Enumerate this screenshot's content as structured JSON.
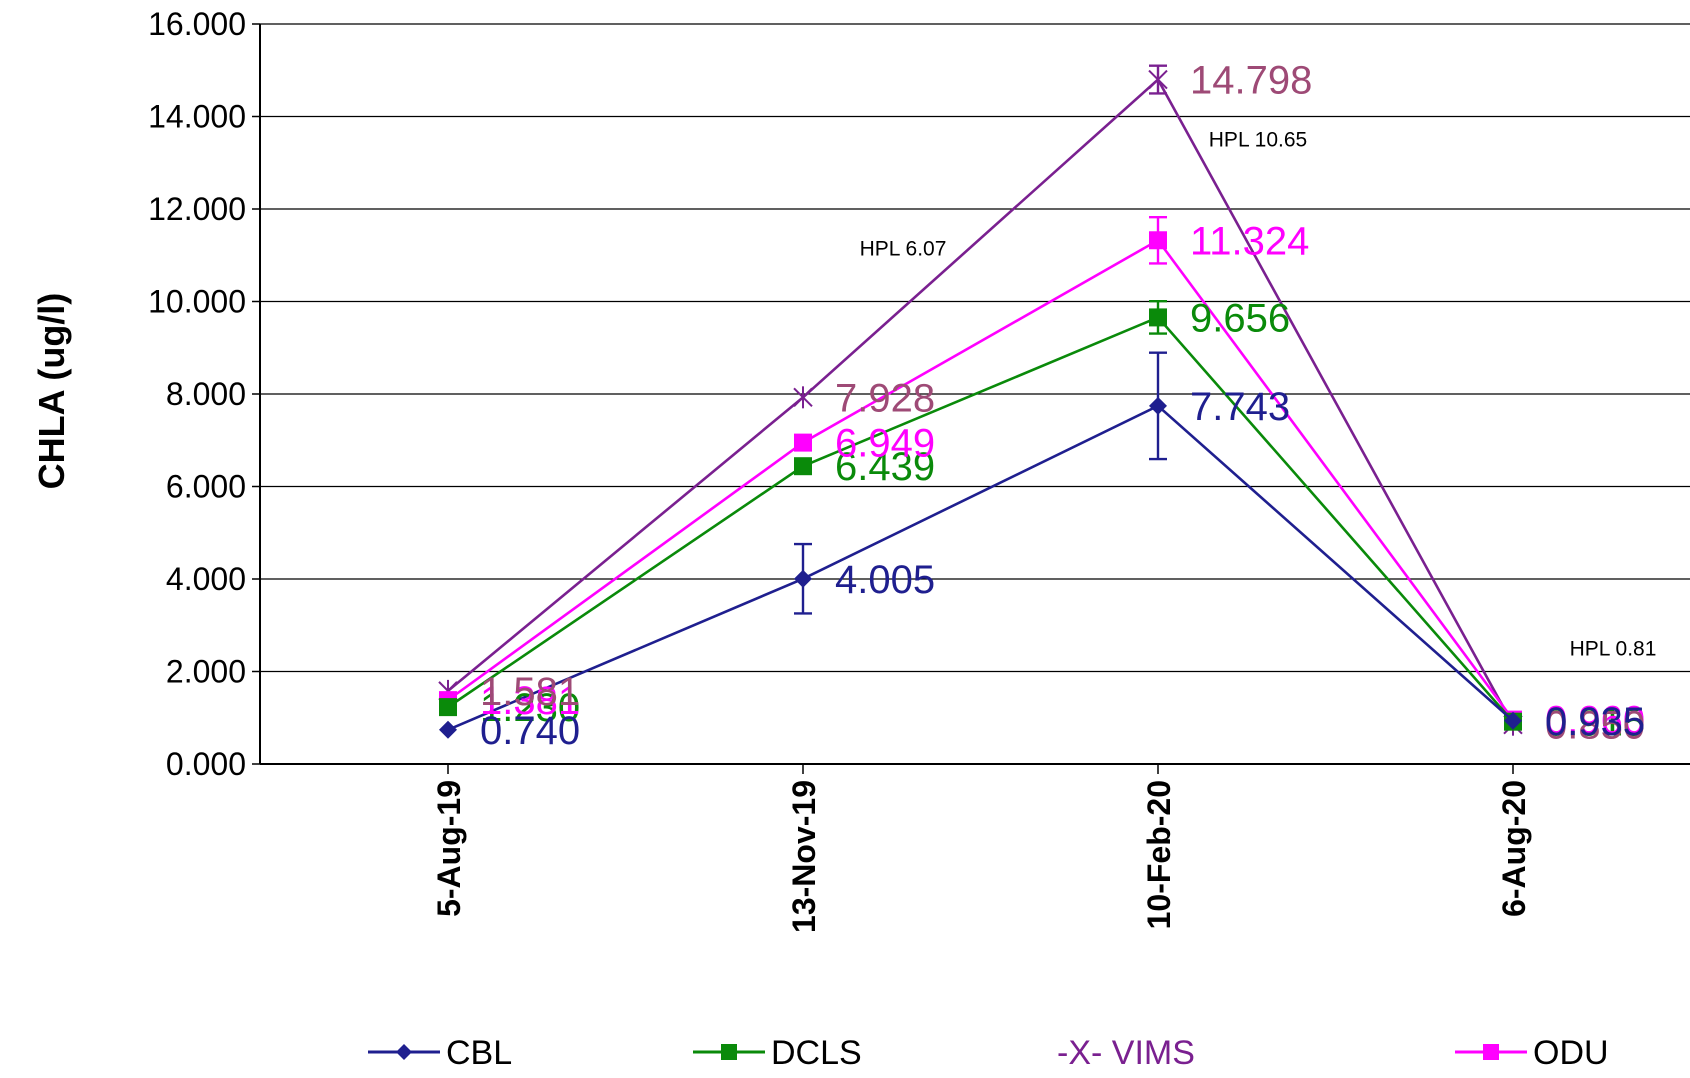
{
  "chart_data": {
    "type": "line",
    "ylabel": "CHLA (ug/l)",
    "ylim": [
      0,
      16
    ],
    "y_ticks": [
      "0.000",
      "2.000",
      "4.000",
      "6.000",
      "8.000",
      "10.000",
      "12.000",
      "14.000",
      "16.000"
    ],
    "categories": [
      "5-Aug-19",
      "13-Nov-19",
      "10-Feb-20",
      "6-Aug-20"
    ],
    "grid": "horizontal",
    "legend_position": "bottom",
    "series": [
      {
        "name": "CBL",
        "legend_label": "CBL",
        "color": "#1F1F8F",
        "marker": "diamond",
        "values": [
          0.74,
          4.005,
          7.743,
          0.935
        ],
        "value_labels": [
          "0.740",
          "4.005",
          "7.743",
          "0.935"
        ],
        "error": [
          0,
          0.75,
          1.15,
          0
        ]
      },
      {
        "name": "DCLS",
        "legend_label": "DCLS",
        "color": "#0A8A0A",
        "marker": "square",
        "values": [
          1.23,
          6.439,
          9.656,
          0.915
        ],
        "value_labels": [
          "1.230",
          "6.439",
          "9.656",
          "0.915"
        ],
        "error": [
          0,
          0,
          0.35,
          0
        ]
      },
      {
        "name": "VIMS",
        "legend_label": "-X- VIMS",
        "color": "#7A2090",
        "label_color": "#9E4A76",
        "marker": "asterisk",
        "values": [
          1.581,
          7.928,
          14.798,
          0.85
        ],
        "value_labels": [
          "1.581",
          "7.928",
          "14.798",
          "0.850"
        ],
        "error": [
          0,
          0,
          0.3,
          0
        ]
      },
      {
        "name": "ODU",
        "legend_label": "ODU",
        "color": "#FF00FF",
        "marker": "square",
        "values": [
          1.381,
          6.949,
          11.324,
          0.96
        ],
        "value_labels": [
          "1.381",
          "6.949",
          "11.324",
          "0.960"
        ],
        "error": [
          0,
          0,
          0.5,
          0
        ]
      }
    ],
    "annotations": [
      {
        "text": "HPL 6.07",
        "category": "13-Nov-19",
        "y": 11.0
      },
      {
        "text": "HPL 10.65",
        "category": "10-Feb-20",
        "y": 13.35
      },
      {
        "text": "HPL 0.81",
        "category": "6-Aug-20",
        "y": 2.35
      }
    ]
  }
}
